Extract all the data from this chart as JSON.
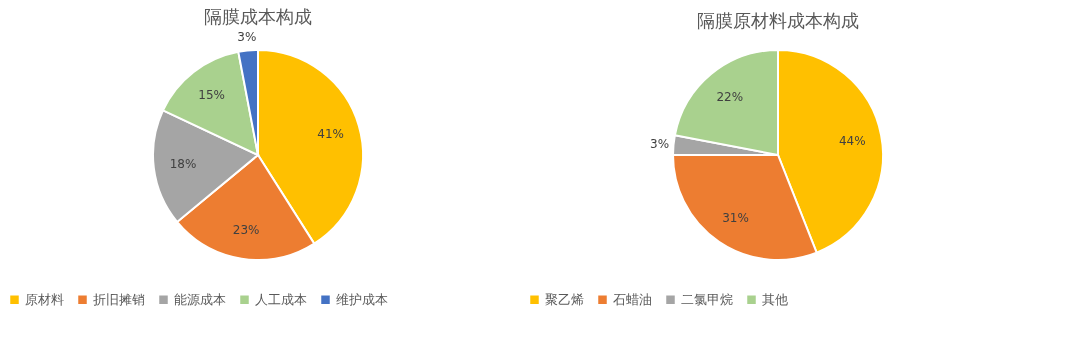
{
  "chart_data": [
    {
      "type": "pie",
      "title": "隔膜成本构成",
      "categories": [
        "原材料",
        "折旧摊销",
        "能源成本",
        "人工成本",
        "维护成本"
      ],
      "values": [
        41,
        23,
        18,
        15,
        3
      ],
      "value_labels": [
        "41%",
        "23%",
        "18%",
        "15%",
        "3%"
      ],
      "colors": [
        "#ffc000",
        "#ed7d31",
        "#a5a5a5",
        "#a9d18e",
        "#4472c4"
      ],
      "legend": "bottom"
    },
    {
      "type": "pie",
      "title": "隔膜原材料成本构成",
      "categories": [
        "聚乙烯",
        "石蜡油",
        "二氯甲烷",
        "其他"
      ],
      "values": [
        44,
        31,
        3,
        22
      ],
      "value_labels": [
        "44%",
        "31%",
        "3%",
        "22%"
      ],
      "colors": [
        "#ffc000",
        "#ed7d31",
        "#a5a5a5",
        "#a9d18e"
      ],
      "legend": "bottom"
    }
  ]
}
